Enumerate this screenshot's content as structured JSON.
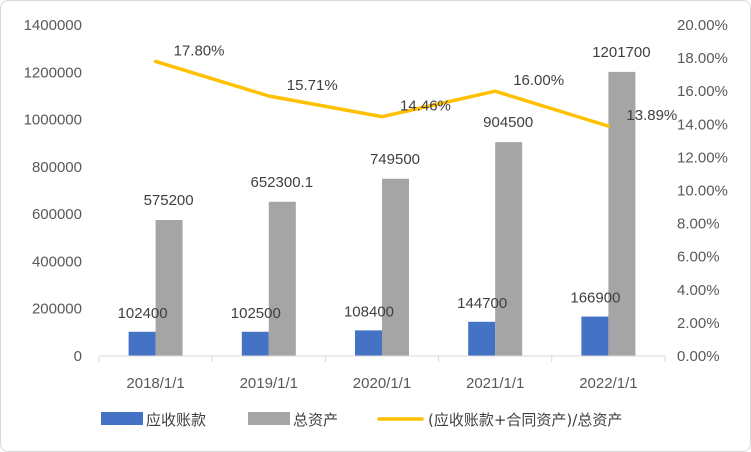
{
  "chart_data": {
    "type": "bar",
    "categories": [
      "2018/1/1",
      "2019/1/1",
      "2020/1/1",
      "2021/1/1",
      "2022/1/1"
    ],
    "series": [
      {
        "name": "应收账款",
        "type": "bar",
        "axis": "left",
        "color": "#4472c4",
        "values": [
          102400,
          102500,
          108400,
          144700,
          166900
        ],
        "labels": [
          "102400",
          "102500",
          "108400",
          "144700",
          "166900"
        ]
      },
      {
        "name": "总资产",
        "type": "bar",
        "axis": "left",
        "color": "#a5a5a5",
        "values": [
          575200,
          652300.1,
          749500,
          904500,
          1201700
        ],
        "labels": [
          "575200",
          "652300.1",
          "749500",
          "904500",
          "1201700"
        ]
      },
      {
        "name": "(应收账款+合同资产)/总资产",
        "type": "line",
        "axis": "right",
        "color": "#ffc000",
        "values": [
          0.178,
          0.1571,
          0.1446,
          0.16,
          0.1389
        ],
        "labels": [
          "17.80%",
          "15.71%",
          "14.46%",
          "16.00%",
          "13.89%"
        ]
      }
    ],
    "y_left": {
      "min": 0,
      "max": 1400000,
      "step": 200000,
      "ticks": [
        "0",
        "200000",
        "400000",
        "600000",
        "800000",
        "1000000",
        "1200000",
        "1400000"
      ]
    },
    "y_right": {
      "min": 0,
      "max": 0.2,
      "step": 0.02,
      "ticks": [
        "0.00%",
        "2.00%",
        "4.00%",
        "6.00%",
        "8.00%",
        "10.00%",
        "12.00%",
        "14.00%",
        "16.00%",
        "18.00%",
        "20.00%"
      ]
    },
    "grid": false,
    "legend_position": "bottom"
  }
}
